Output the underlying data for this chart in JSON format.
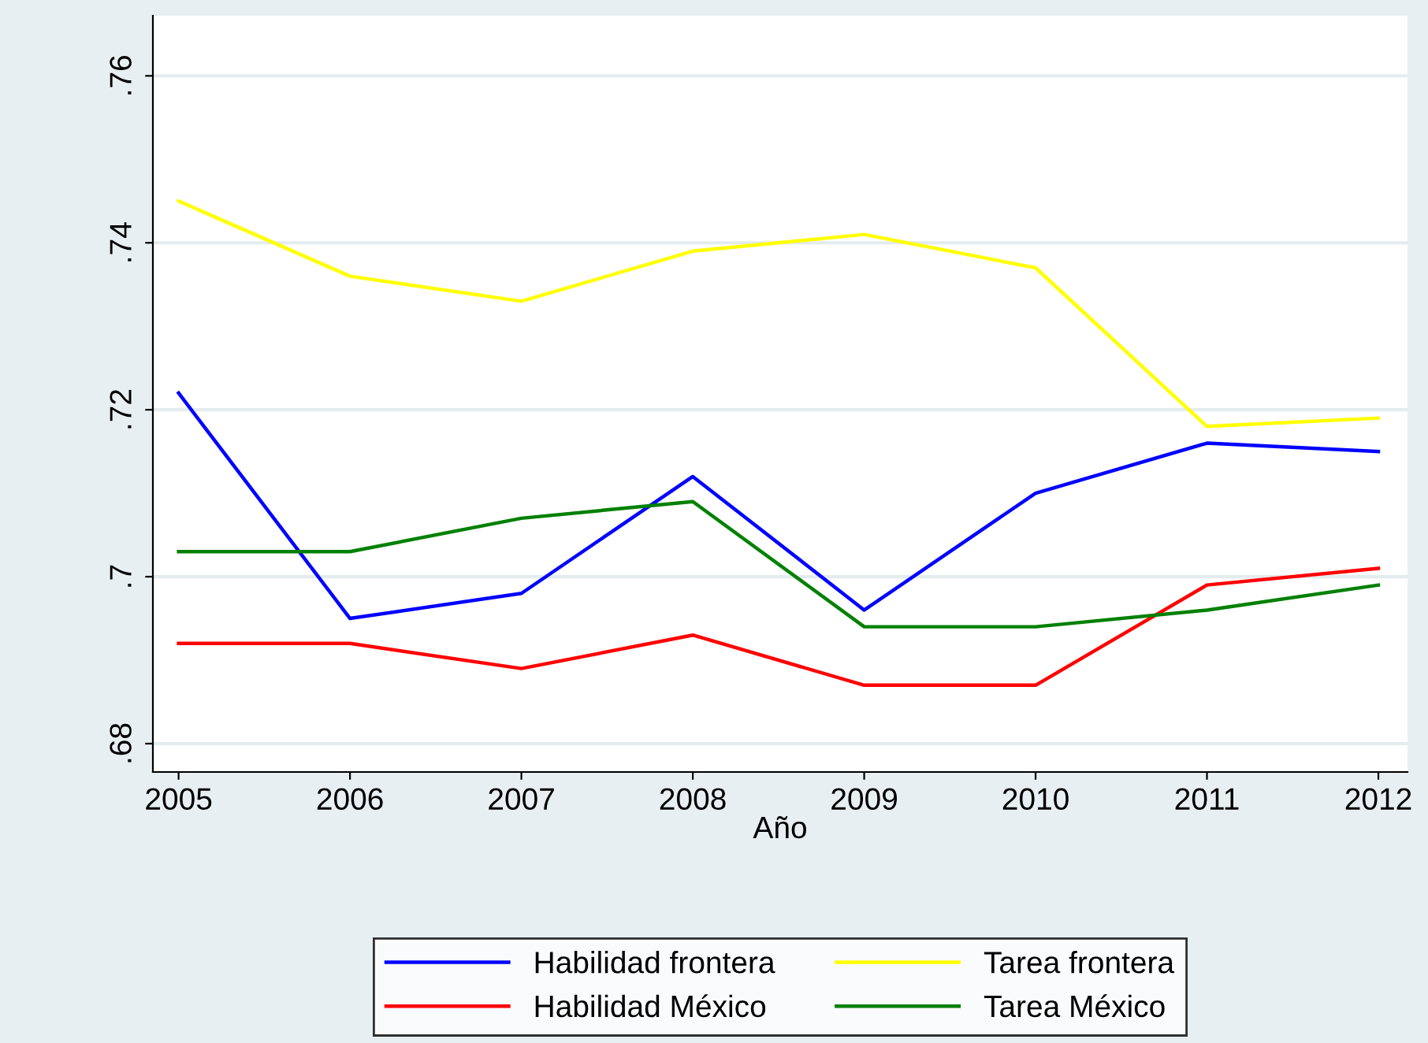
{
  "chart_data": {
    "type": "line",
    "xlabel": "Año",
    "x": [
      2005,
      2006,
      2007,
      2008,
      2009,
      2010,
      2011,
      2012
    ],
    "series": [
      {
        "name": "Habilidad frontera",
        "color": "#0000ff",
        "values": [
          0.722,
          0.695,
          0.698,
          0.712,
          0.696,
          0.71,
          0.716,
          0.715
        ]
      },
      {
        "name": "Habilidad México",
        "color": "#ff0000",
        "values": [
          0.692,
          0.692,
          0.689,
          0.693,
          0.687,
          0.687,
          0.699,
          0.701
        ]
      },
      {
        "name": "Tarea frontera",
        "color": "#ffff00",
        "values": [
          0.745,
          0.736,
          0.733,
          0.739,
          0.741,
          0.737,
          0.718,
          0.719
        ]
      },
      {
        "name": "Tarea México",
        "color": "#008000",
        "values": [
          0.703,
          0.703,
          0.707,
          0.709,
          0.694,
          0.694,
          0.696,
          0.699
        ]
      }
    ],
    "xlim": [
      2004.85,
      2012.17
    ],
    "ylim": [
      0.6766,
      0.7672
    ],
    "xticks": [
      2005,
      2006,
      2007,
      2008,
      2009,
      2010,
      2011,
      2012
    ],
    "yticks": [
      {
        "value": 0.68,
        "label": ".68"
      },
      {
        "value": 0.7,
        "label": ".7"
      },
      {
        "value": 0.72,
        "label": ".72"
      },
      {
        "value": 0.74,
        "label": ".74"
      },
      {
        "value": 0.76,
        "label": ".76"
      }
    ],
    "grid": "y",
    "legend": "bottom",
    "marker": "none",
    "line_style": "solid"
  }
}
